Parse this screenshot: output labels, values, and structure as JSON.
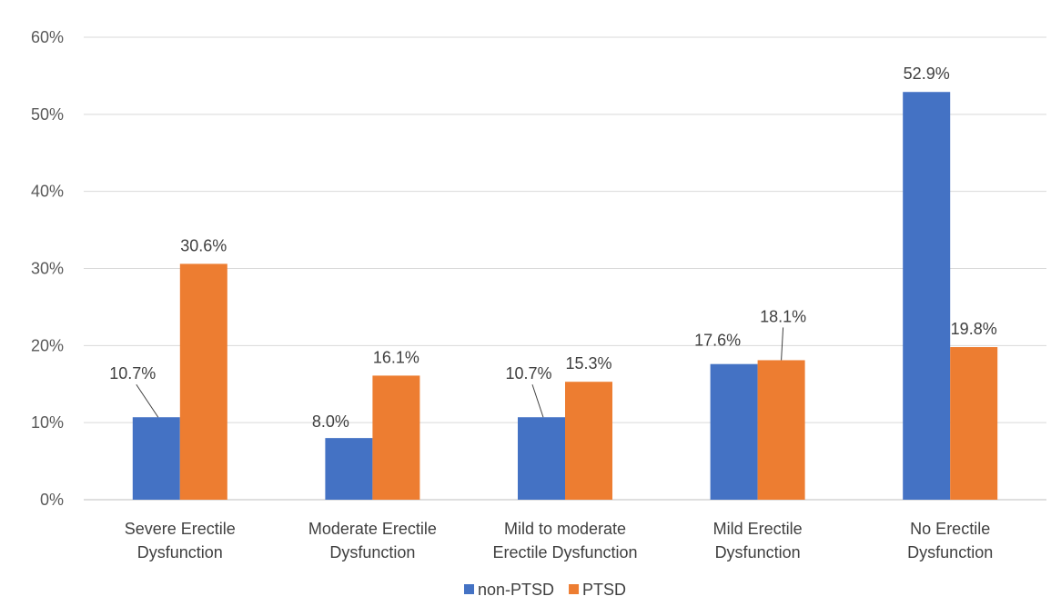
{
  "chart_data": {
    "type": "bar",
    "categories": [
      [
        "Severe Erectile",
        "Dysfunction"
      ],
      [
        "Moderate Erectile",
        "Dysfunction"
      ],
      [
        "Mild to moderate",
        "Erectile Dysfunction"
      ],
      [
        "Mild Erectile",
        "Dysfunction"
      ],
      [
        "No Erectile",
        "Dysfunction"
      ]
    ],
    "series": [
      {
        "name": "non-PTSD",
        "color": "#4472C4",
        "values": [
          10.7,
          8.0,
          10.7,
          17.6,
          52.9
        ],
        "labels": [
          "10.7%",
          "8.0%",
          "10.7%",
          "17.6%",
          "52.9%"
        ]
      },
      {
        "name": "PTSD",
        "color": "#ED7D31",
        "values": [
          30.6,
          16.1,
          15.3,
          18.1,
          19.8
        ],
        "labels": [
          "30.6%",
          "16.1%",
          "15.3%",
          "18.1%",
          "19.8%"
        ]
      }
    ],
    "ylim": [
      0,
      60
    ],
    "yticks": [
      0,
      10,
      20,
      30,
      40,
      50,
      60
    ],
    "ytick_labels": [
      "0%",
      "10%",
      "20%",
      "30%",
      "40%",
      "50%",
      "60%"
    ],
    "xlabel": "",
    "ylabel": "",
    "title": "",
    "grid": true,
    "legend_position": "bottom"
  }
}
